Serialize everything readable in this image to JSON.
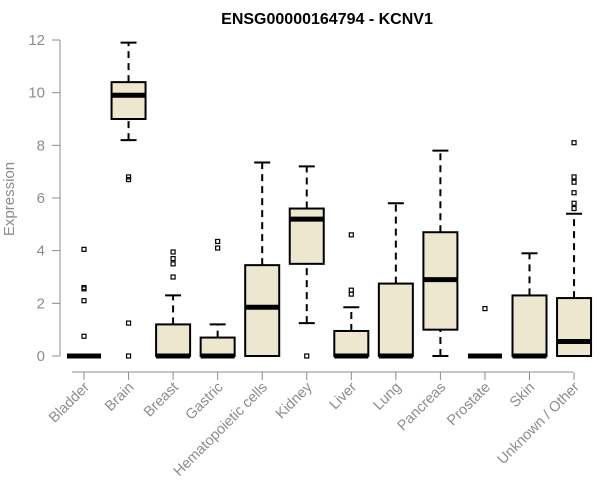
{
  "chart_data": {
    "type": "boxplot",
    "title": "ENSG00000164794 - KCNV1",
    "xlabel": "",
    "ylabel": "Expression",
    "ylim": [
      0,
      12
    ],
    "yticks": [
      0,
      2,
      4,
      6,
      8,
      10,
      12
    ],
    "grid": false,
    "fill_color": "#ede7cf",
    "categories": [
      "Bladder",
      "Brain",
      "Breast",
      "Gastric",
      "Hematopoietic cells",
      "Kidney",
      "Liver",
      "Lung",
      "Pancreas",
      "Prostate",
      "Skin",
      "Unknown / Other"
    ],
    "boxes": [
      {
        "name": "Bladder",
        "min": 0,
        "q1": 0,
        "median": 0,
        "q3": 0,
        "max": 0,
        "outliers": [
          0.75,
          2.1,
          2.55,
          2.6,
          4.05
        ]
      },
      {
        "name": "Brain",
        "min": 8.2,
        "q1": 9.0,
        "median": 9.9,
        "q3": 10.4,
        "max": 11.9,
        "outliers": [
          0,
          1.25,
          6.7,
          6.8
        ]
      },
      {
        "name": "Breast",
        "min": 0,
        "q1": 0,
        "median": 0,
        "q3": 1.2,
        "max": 2.3,
        "outliers": [
          3.0,
          3.5,
          3.7,
          3.95
        ]
      },
      {
        "name": "Gastric",
        "min": 0,
        "q1": 0,
        "median": 0,
        "q3": 0.7,
        "max": 1.2,
        "outliers": [
          4.1,
          4.35
        ]
      },
      {
        "name": "Hematopoietic cells",
        "min": 0,
        "q1": 0,
        "median": 1.85,
        "q3": 3.45,
        "max": 7.35,
        "outliers": []
      },
      {
        "name": "Kidney",
        "min": 1.25,
        "q1": 3.5,
        "median": 5.2,
        "q3": 5.6,
        "max": 7.2,
        "outliers": [
          0
        ]
      },
      {
        "name": "Liver",
        "min": 0,
        "q1": 0,
        "median": 0,
        "q3": 0.95,
        "max": 1.85,
        "outliers": [
          2.35,
          2.5,
          4.6
        ]
      },
      {
        "name": "Lung",
        "min": 0,
        "q1": 0,
        "median": 0,
        "q3": 2.75,
        "max": 5.8,
        "outliers": []
      },
      {
        "name": "Pancreas",
        "min": 0,
        "q1": 1.0,
        "median": 2.9,
        "q3": 4.7,
        "max": 7.8,
        "outliers": []
      },
      {
        "name": "Prostate",
        "min": 0,
        "q1": 0,
        "median": 0,
        "q3": 0,
        "max": 0,
        "outliers": [
          1.8
        ]
      },
      {
        "name": "Skin",
        "min": 0,
        "q1": 0,
        "median": 0,
        "q3": 2.3,
        "max": 3.9,
        "outliers": []
      },
      {
        "name": "Unknown / Other",
        "min": 0,
        "q1": 0,
        "median": 0.55,
        "q3": 2.2,
        "max": 5.4,
        "outliers": [
          5.6,
          5.8,
          6.2,
          6.6,
          6.8,
          8.1
        ]
      }
    ]
  }
}
